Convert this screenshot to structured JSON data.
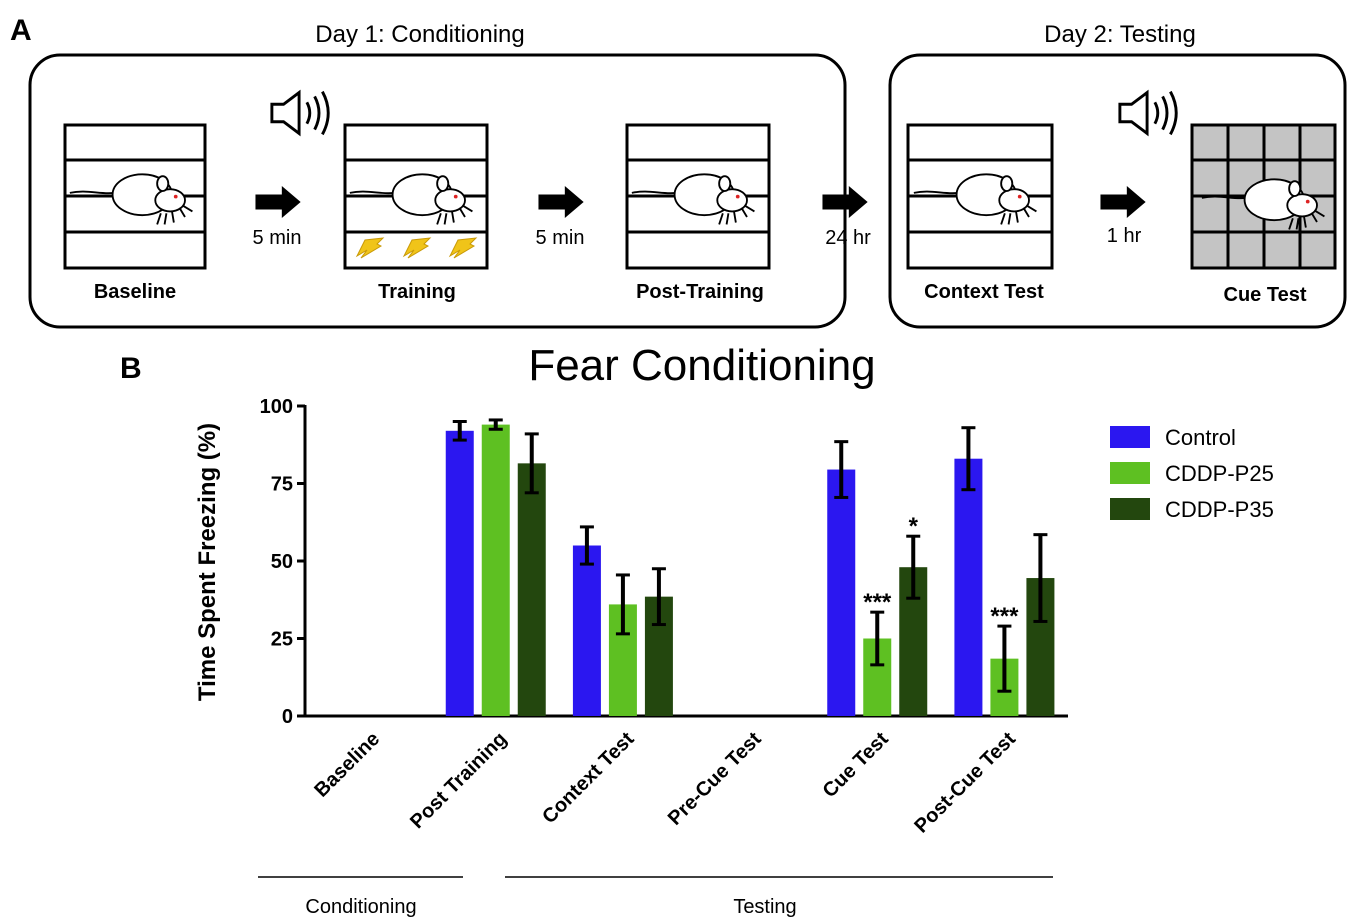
{
  "panel_a": {
    "label": "A",
    "day1_title": "Day 1: Conditioning",
    "day2_title": "Day 2: Testing",
    "stages": [
      "Baseline",
      "Training",
      "Post-Training",
      "Context Test",
      "Cue Test"
    ],
    "intervals": [
      "5 min",
      "5 min",
      "24 hr",
      "1 hr"
    ]
  },
  "panel_b_label": "B",
  "chart_data": {
    "type": "bar",
    "title": "Fear Conditioning",
    "ylabel": "Time Spent Freezing (%)",
    "categories": [
      "Baseline",
      "Post Training",
      "Context Test",
      "Pre-Cue Test",
      "Cue Test",
      "Post-Cue Test"
    ],
    "series": [
      {
        "name": "Control",
        "color": "#2b17f0",
        "values": [
          null,
          92,
          55,
          0,
          79.5,
          83
        ],
        "errors": [
          null,
          3,
          6,
          null,
          9,
          10
        ],
        "significance": [
          null,
          null,
          null,
          null,
          null,
          null
        ]
      },
      {
        "name": "CDDP-P25",
        "color": "#5ec022",
        "values": [
          null,
          94,
          36,
          null,
          25,
          18.5
        ],
        "errors": [
          null,
          1.5,
          9.5,
          null,
          8.5,
          10.5
        ],
        "significance": [
          null,
          null,
          null,
          null,
          "***",
          "***"
        ]
      },
      {
        "name": "CDDP-P35",
        "color": "#23470e",
        "values": [
          null,
          81.5,
          38.5,
          null,
          48,
          44.5
        ],
        "errors": [
          null,
          9.5,
          9,
          null,
          10,
          14
        ],
        "significance": [
          null,
          null,
          null,
          null,
          "*",
          null
        ]
      }
    ],
    "ylim": [
      0,
      100
    ],
    "yticks": [
      0,
      25,
      50,
      75,
      100
    ],
    "grid": false,
    "legend": "right",
    "groups": [
      "Conditioning",
      "Testing"
    ]
  }
}
